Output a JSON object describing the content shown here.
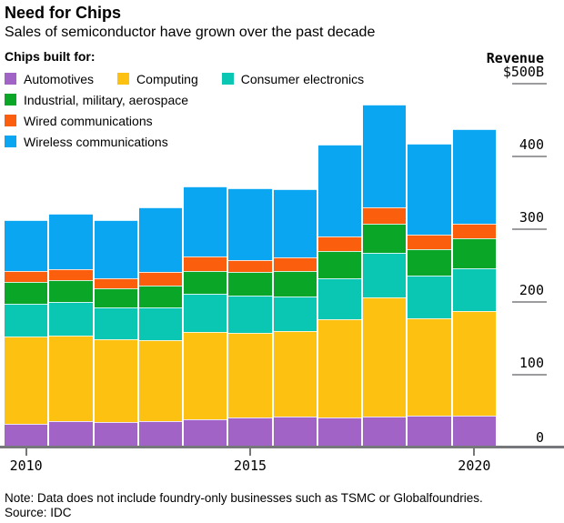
{
  "header": {
    "title": "Need for Chips",
    "subtitle": "Sales of semiconductor have grown over the past decade"
  },
  "legend": {
    "heading": "Chips built for:",
    "rows": [
      [
        0,
        1,
        2
      ],
      [
        3
      ],
      [
        4
      ],
      [
        5
      ]
    ]
  },
  "axis": {
    "y_title": "Revenue",
    "ticks": [
      {
        "label": "$500B",
        "value": 500
      },
      {
        "label": "400",
        "value": 400
      },
      {
        "label": "300",
        "value": 300
      },
      {
        "label": "200",
        "value": 200
      },
      {
        "label": "100",
        "value": 100
      },
      {
        "label": "0",
        "value": 0
      }
    ],
    "x_ticks": [
      {
        "label": "2010",
        "index": 0
      },
      {
        "label": "2015",
        "index": 5
      },
      {
        "label": "2020",
        "index": 10
      }
    ]
  },
  "chart_data": {
    "type": "bar",
    "stacked": true,
    "title": "Need for Chips",
    "subtitle": "Sales of semiconductor have grown over the past decade",
    "ylabel": "Revenue ($B)",
    "ylim": [
      0,
      500
    ],
    "yticks": [
      0,
      100,
      200,
      300,
      400,
      500
    ],
    "grid": false,
    "legend_position": "top-left",
    "categories": [
      "2010",
      "2011",
      "2012",
      "2013",
      "2014",
      "2015",
      "2016",
      "2017",
      "2018",
      "2019",
      "2020"
    ],
    "series": [
      {
        "name": "Automotives",
        "color": "#a263c6",
        "values": [
          33,
          36,
          35,
          36,
          39,
          41,
          43,
          41,
          43,
          44,
          44
        ]
      },
      {
        "name": "Computing",
        "color": "#fdc211",
        "values": [
          120,
          118,
          114,
          112,
          120,
          116,
          117,
          135,
          163,
          134,
          143
        ]
      },
      {
        "name": "Consumer electronics",
        "color": "#0ac7b4",
        "values": [
          45,
          46,
          44,
          44,
          52,
          52,
          48,
          57,
          62,
          58,
          59
        ]
      },
      {
        "name": "Industrial, military, aerospace",
        "color": "#0aa628",
        "values": [
          30,
          30,
          26,
          30,
          31,
          32,
          34,
          37,
          39,
          37,
          42
        ]
      },
      {
        "name": "Wired communications",
        "color": "#fb5e0d",
        "values": [
          14,
          15,
          14,
          19,
          21,
          16,
          19,
          20,
          23,
          19,
          20
        ]
      },
      {
        "name": "Wireless communications",
        "color": "#0aa6f2",
        "values": [
          70,
          76,
          79,
          89,
          96,
          99,
          94,
          126,
          141,
          125,
          129
        ]
      }
    ],
    "totals": [
      312,
      321,
      312,
      330,
      359,
      356,
      355,
      416,
      471,
      417,
      437
    ]
  },
  "footer": {
    "note": "Note: Data does not include foundry-only businesses such as TSMC or Globalfoundries.",
    "source": "Source: IDC"
  },
  "colors": {
    "baseline": "#76777a",
    "tick_line": "#9c9c9e",
    "background": "#ffffff",
    "text": "#000000"
  }
}
